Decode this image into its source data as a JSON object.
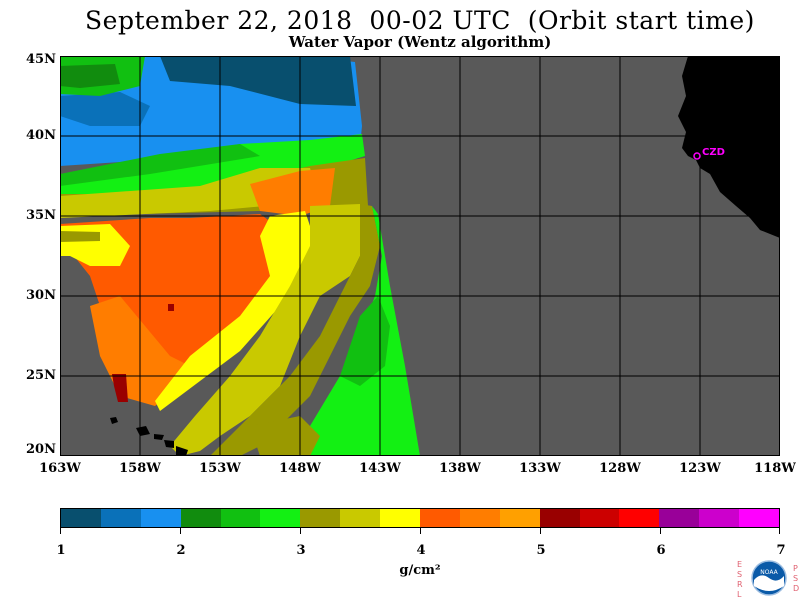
{
  "header": {
    "title": "September 22, 2018  00-02 UTC  (Orbit start time)",
    "subtitle": "Water Vapor (Wentz algorithm)"
  },
  "map": {
    "latitude_labels": [
      "45N",
      "40N",
      "35N",
      "30N",
      "25N",
      "20N"
    ],
    "longitude_labels": [
      "163W",
      "158W",
      "153W",
      "148W",
      "143W",
      "138W",
      "133W",
      "128W",
      "123W",
      "118W"
    ],
    "lat_range": [
      20,
      45
    ],
    "lon_range": [
      -163,
      -118
    ],
    "grid_step_degrees": 5,
    "place_label": "CZD",
    "colors": {
      "no_data": "#595959",
      "land": "#000000",
      "place_marker": "#ff00ff",
      "grid": "#000000"
    }
  },
  "colorbar": {
    "tick_labels": [
      "1",
      "2",
      "3",
      "4",
      "5",
      "6",
      "7"
    ],
    "unit": "g/cm²",
    "colors": [
      "#084f6e",
      "#0a71b9",
      "#1890f0",
      "#118c0e",
      "#11c011",
      "#13f013",
      "#9a9900",
      "#c9c900",
      "#ffff00",
      "#ff5a00",
      "#ff7d00",
      "#ffa000",
      "#990000",
      "#cc0000",
      "#ff0000",
      "#990099",
      "#cc00cc",
      "#ff00ff"
    ]
  },
  "logo": {
    "left_letters": [
      "E",
      "S",
      "R",
      "L"
    ],
    "right_letters": [
      "P",
      "S",
      "D"
    ],
    "badge_text": "NOAA"
  }
}
